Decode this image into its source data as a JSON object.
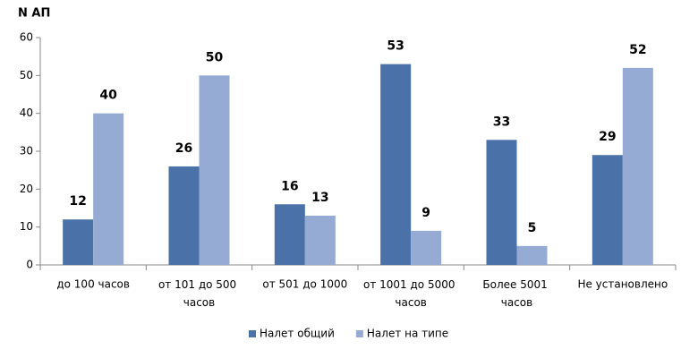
{
  "chart_data": {
    "type": "bar",
    "y_label": "N АП",
    "categories": [
      "до 100 часов",
      "от 101 до 500 часов",
      "от 501 до 1000",
      "от 1001 до 5000 часов",
      "Более 5001 часов",
      "Не установлено"
    ],
    "series": [
      {
        "name": "Налет общий",
        "color": "#4a72a8",
        "values": [
          12,
          26,
          16,
          53,
          33,
          29
        ]
      },
      {
        "name": "Налет на типе",
        "color": "#95abd3",
        "values": [
          40,
          50,
          13,
          9,
          5,
          52
        ]
      }
    ],
    "ylim": [
      0,
      60
    ],
    "yticks": [
      0,
      10,
      20,
      30,
      40,
      50,
      60
    ],
    "grid": false,
    "legend": "bottom"
  }
}
